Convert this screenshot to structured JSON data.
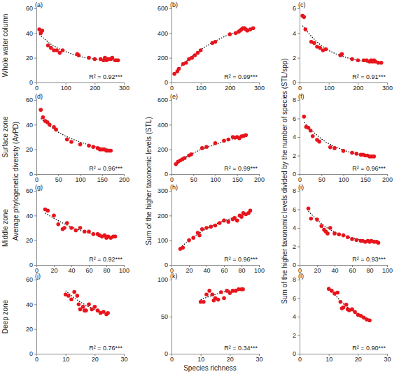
{
  "chart_data": [
    {
      "type": "scatter",
      "title": "(a)",
      "annotation": "R² = 0.92***",
      "xlim": [
        0,
        300
      ],
      "xticks": [
        0,
        100,
        200,
        300
      ],
      "ylim": [
        0,
        60
      ],
      "yticks": [
        0,
        20,
        40,
        60
      ],
      "series": [
        {
          "type": "scatter",
          "marker": "circle",
          "color": "#e8141c",
          "x": [
            10,
            15,
            20,
            40,
            50,
            60,
            70,
            80,
            90,
            140,
            145,
            180,
            200,
            220,
            230,
            235,
            240,
            245,
            250,
            255,
            260,
            270,
            275,
            280
          ],
          "values": [
            43,
            40,
            42,
            30,
            28,
            26,
            26,
            24,
            26,
            23,
            22,
            20,
            19,
            19,
            18,
            20,
            18,
            19,
            19,
            19,
            20,
            18,
            18,
            18
          ]
        },
        {
          "type": "line",
          "line_style": "dotted",
          "color": "#000000",
          "x": [
            10,
            50,
            100,
            150,
            200,
            250,
            280
          ],
          "values": [
            39,
            31,
            25,
            21,
            19,
            18,
            18
          ]
        }
      ]
    },
    {
      "type": "scatter",
      "title": "(b)",
      "annotation": "R² = 0.99***",
      "xlim": [
        0,
        300
      ],
      "xticks": [
        0,
        100,
        200,
        300
      ],
      "ylim": [
        0,
        600
      ],
      "yticks": [
        0,
        200,
        400,
        600
      ],
      "series": [
        {
          "type": "scatter",
          "marker": "circle",
          "color": "#e8141c",
          "x": [
            10,
            20,
            25,
            40,
            50,
            60,
            70,
            80,
            90,
            100,
            140,
            150,
            200,
            220,
            230,
            235,
            240,
            245,
            250,
            255,
            260,
            270,
            280
          ],
          "values": [
            70,
            90,
            110,
            150,
            160,
            190,
            200,
            220,
            240,
            260,
            320,
            330,
            390,
            400,
            410,
            420,
            430,
            440,
            440,
            430,
            420,
            430,
            440
          ]
        },
        {
          "type": "line",
          "line_style": "dotted",
          "color": "#000000",
          "x": [
            10,
            50,
            100,
            150,
            200,
            250,
            280
          ],
          "values": [
            75,
            170,
            265,
            335,
            390,
            425,
            440
          ]
        }
      ]
    },
    {
      "type": "scatter",
      "title": "(c)",
      "annotation": "R² = 0.91***",
      "xlim": [
        0,
        300
      ],
      "xticks": [
        0,
        100,
        200,
        300
      ],
      "ylim": [
        0,
        6
      ],
      "yticks": [
        0,
        2,
        4,
        6
      ],
      "series": [
        {
          "type": "scatter",
          "marker": "circle",
          "color": "#e8141c",
          "x": [
            10,
            15,
            20,
            40,
            50,
            60,
            70,
            80,
            90,
            140,
            145,
            180,
            200,
            220,
            230,
            240,
            245,
            250,
            255,
            260,
            270,
            280
          ],
          "values": [
            5.4,
            5.3,
            4.3,
            3.3,
            3.2,
            2.9,
            2.8,
            2.6,
            2.7,
            2.2,
            2.3,
            1.9,
            1.8,
            1.8,
            1.8,
            1.7,
            1.8,
            1.7,
            1.8,
            1.7,
            1.6,
            1.6
          ]
        },
        {
          "type": "line",
          "line_style": "dotted",
          "color": "#000000",
          "x": [
            10,
            50,
            100,
            150,
            200,
            250,
            280
          ],
          "values": [
            4.6,
            3.5,
            2.6,
            2.1,
            1.8,
            1.6,
            1.6
          ]
        }
      ]
    },
    {
      "type": "scatter",
      "title": "(d)",
      "annotation": "R² = 0.96***",
      "xlim": [
        0,
        200
      ],
      "xticks": [
        0,
        50,
        100,
        150,
        200
      ],
      "ylim": [
        0,
        60
      ],
      "yticks": [
        0,
        20,
        40,
        60
      ],
      "series": [
        {
          "type": "scatter",
          "marker": "circle",
          "color": "#e8141c",
          "x": [
            10,
            15,
            20,
            25,
            30,
            40,
            45,
            70,
            80,
            100,
            120,
            130,
            140,
            145,
            150,
            155,
            160,
            165,
            170
          ],
          "values": [
            52,
            46,
            43,
            42,
            40,
            38,
            36,
            28,
            26,
            24,
            23,
            22,
            21,
            20,
            20,
            20,
            19,
            19,
            19
          ]
        },
        {
          "type": "line",
          "line_style": "dotted",
          "color": "#000000",
          "x": [
            10,
            50,
            100,
            150,
            170
          ],
          "values": [
            45,
            34,
            26,
            21,
            20
          ]
        }
      ]
    },
    {
      "type": "scatter",
      "title": "(e)",
      "annotation": "R² = 0.99***",
      "xlim": [
        0,
        200
      ],
      "xticks": [
        0,
        50,
        100,
        150,
        200
      ],
      "ylim": [
        0,
        600
      ],
      "yticks": [
        0,
        200,
        400,
        600
      ],
      "series": [
        {
          "type": "scatter",
          "marker": "circle",
          "color": "#e8141c",
          "x": [
            10,
            15,
            20,
            25,
            30,
            40,
            45,
            70,
            80,
            100,
            120,
            130,
            140,
            145,
            150,
            155,
            160,
            165,
            170
          ],
          "values": [
            80,
            100,
            110,
            120,
            130,
            150,
            160,
            210,
            220,
            250,
            270,
            280,
            300,
            295,
            300,
            290,
            305,
            310,
            315
          ]
        },
        {
          "type": "line",
          "line_style": "dotted",
          "color": "#000000",
          "x": [
            10,
            50,
            100,
            150,
            170
          ],
          "values": [
            85,
            170,
            240,
            295,
            315
          ]
        }
      ]
    },
    {
      "type": "scatter",
      "title": "(f)",
      "annotation": "R² = 0.96***",
      "xlim": [
        0,
        200
      ],
      "xticks": [
        0,
        50,
        100,
        150,
        200
      ],
      "ylim": [
        0,
        8
      ],
      "yticks": [
        0,
        2,
        4,
        6,
        8
      ],
      "series": [
        {
          "type": "scatter",
          "marker": "circle",
          "color": "#e8141c",
          "x": [
            10,
            15,
            20,
            25,
            30,
            40,
            45,
            70,
            80,
            100,
            120,
            130,
            140,
            145,
            150,
            155,
            160,
            165,
            170
          ],
          "values": [
            6.2,
            5.1,
            5.0,
            4.7,
            4.1,
            3.7,
            3.5,
            2.9,
            2.8,
            2.5,
            2.3,
            2.2,
            2.1,
            2.1,
            2.0,
            2.0,
            1.9,
            1.9,
            1.9
          ]
        },
        {
          "type": "line",
          "line_style": "dotted",
          "color": "#000000",
          "x": [
            10,
            50,
            100,
            150,
            170
          ],
          "values": [
            5.6,
            3.8,
            2.6,
            2.0,
            1.9
          ]
        }
      ]
    },
    {
      "type": "scatter",
      "title": "(g)",
      "annotation": "R² = 0.92***",
      "xlim": [
        0,
        100
      ],
      "xticks": [
        0,
        20,
        40,
        60,
        80,
        100
      ],
      "ylim": [
        0,
        60
      ],
      "yticks": [
        0,
        20,
        40,
        60
      ],
      "series": [
        {
          "type": "scatter",
          "marker": "circle",
          "color": "#e8141c",
          "x": [
            10,
            13,
            20,
            25,
            30,
            32,
            35,
            40,
            45,
            50,
            55,
            60,
            65,
            70,
            72,
            75,
            78,
            80,
            82,
            85,
            88,
            90
          ],
          "values": [
            45,
            44,
            40,
            33,
            29,
            30,
            34,
            30,
            28,
            30,
            27,
            27,
            25,
            25,
            24,
            23,
            24,
            22,
            23,
            22,
            23,
            23
          ]
        },
        {
          "type": "line",
          "line_style": "dotted",
          "color": "#000000",
          "x": [
            10,
            30,
            50,
            70,
            90
          ],
          "values": [
            42,
            34,
            28,
            24,
            22
          ]
        }
      ]
    },
    {
      "type": "scatter",
      "title": "(h)",
      "annotation": "R² = 0.96***",
      "xlim": [
        0,
        100
      ],
      "xticks": [
        0,
        20,
        40,
        60,
        80,
        100
      ],
      "ylim": [
        0,
        300
      ],
      "yticks": [
        0,
        100,
        200,
        300
      ],
      "series": [
        {
          "type": "scatter",
          "marker": "circle",
          "color": "#e8141c",
          "x": [
            10,
            13,
            20,
            25,
            30,
            32,
            35,
            40,
            45,
            50,
            55,
            60,
            65,
            70,
            72,
            75,
            78,
            80,
            82,
            85,
            88,
            90
          ],
          "values": [
            65,
            70,
            100,
            110,
            130,
            120,
            145,
            150,
            155,
            160,
            170,
            180,
            175,
            185,
            190,
            180,
            200,
            195,
            210,
            205,
            210,
            220
          ]
        },
        {
          "type": "line",
          "line_style": "dotted",
          "color": "#000000",
          "x": [
            10,
            30,
            50,
            70,
            90
          ],
          "values": [
            70,
            125,
            165,
            190,
            210
          ]
        }
      ]
    },
    {
      "type": "scatter",
      "title": "(i)",
      "annotation": "R² = 0.93***",
      "xlim": [
        0,
        100
      ],
      "xticks": [
        0,
        20,
        40,
        60,
        80,
        100
      ],
      "ylim": [
        0,
        8
      ],
      "yticks": [
        0,
        2,
        4,
        6,
        8
      ],
      "series": [
        {
          "type": "scatter",
          "marker": "circle",
          "color": "#e8141c",
          "x": [
            10,
            13,
            20,
            25,
            28,
            30,
            32,
            35,
            40,
            45,
            50,
            55,
            60,
            65,
            70,
            72,
            75,
            78,
            80,
            82,
            85,
            88,
            90
          ],
          "values": [
            6.1,
            5.0,
            4.9,
            4.2,
            3.8,
            3.6,
            3.4,
            4.0,
            3.4,
            3.3,
            3.2,
            3.0,
            2.8,
            2.7,
            2.6,
            2.6,
            2.5,
            2.6,
            2.5,
            2.6,
            2.5,
            2.5,
            2.4
          ]
        },
        {
          "type": "line",
          "line_style": "dotted",
          "color": "#000000",
          "x": [
            10,
            30,
            50,
            70,
            90
          ],
          "values": [
            5.8,
            4.1,
            3.2,
            2.7,
            2.4
          ]
        }
      ]
    },
    {
      "type": "scatter",
      "title": "(j)",
      "annotation": "R² = 0.76***",
      "xlim": [
        0,
        30
      ],
      "xticks": [
        0,
        10,
        20,
        30
      ],
      "ylim": [
        0,
        60
      ],
      "yticks": [
        0,
        20,
        40,
        60
      ],
      "series": [
        {
          "type": "scatter",
          "marker": "circle",
          "color": "#e8141c",
          "x": [
            10,
            11,
            12,
            13,
            14,
            14.5,
            15,
            16,
            16.5,
            17,
            18,
            19,
            20,
            21,
            22,
            23,
            24,
            24.5
          ],
          "values": [
            48,
            47,
            44,
            50,
            47,
            40,
            36,
            38,
            35,
            35,
            40,
            36,
            38,
            35,
            33,
            34,
            32,
            33
          ]
        },
        {
          "type": "line",
          "line_style": "dotted",
          "color": "#000000",
          "x": [
            10,
            15,
            20,
            24
          ],
          "values": [
            51,
            42,
            36,
            33
          ]
        }
      ]
    },
    {
      "type": "scatter",
      "title": "(k)",
      "annotation": "R² = 0.34***",
      "xlim": [
        0,
        30
      ],
      "xticks": [
        0,
        10,
        20,
        30
      ],
      "ylim": [
        0,
        100
      ],
      "yticks": [
        0,
        50,
        100
      ],
      "series": [
        {
          "type": "scatter",
          "marker": "circle",
          "color": "#e8141c",
          "x": [
            10,
            11,
            12,
            13,
            14,
            14.5,
            15,
            16,
            17,
            18,
            19,
            20,
            21,
            22,
            23,
            24,
            24.5
          ],
          "values": [
            70,
            70,
            80,
            85,
            80,
            72,
            75,
            73,
            83,
            75,
            85,
            82,
            85,
            85,
            87,
            87,
            87
          ]
        },
        {
          "type": "line",
          "line_style": "dotted",
          "color": "#000000",
          "x": [
            10,
            15,
            20,
            24
          ],
          "values": [
            73,
            80,
            85,
            87
          ]
        }
      ]
    },
    {
      "type": "scatter",
      "title": "(l)",
      "annotation": "R² = 0.90***",
      "xlim": [
        0,
        30
      ],
      "xticks": [
        0,
        10,
        20,
        30
      ],
      "ylim": [
        0,
        8
      ],
      "yticks": [
        0,
        2,
        4,
        6,
        8
      ],
      "series": [
        {
          "type": "scatter",
          "marker": "circle",
          "color": "#e8141c",
          "x": [
            10,
            11,
            12,
            13,
            14,
            14.5,
            15,
            16,
            16.5,
            17,
            18,
            19,
            20,
            21,
            22,
            23,
            24
          ],
          "values": [
            7.0,
            6.8,
            6.5,
            6.6,
            5.6,
            4.9,
            5.0,
            5.3,
            4.8,
            4.7,
            4.8,
            4.5,
            4.2,
            4.1,
            3.9,
            3.7,
            3.6
          ]
        },
        {
          "type": "line",
          "line_style": "dotted",
          "color": "#000000",
          "x": [
            10,
            15,
            20,
            24
          ],
          "values": [
            7.2,
            5.4,
            4.3,
            3.7
          ]
        }
      ]
    }
  ],
  "row_labels": [
    "Whole water column",
    "Surface zone",
    "Middle zone",
    "Deep zone"
  ],
  "column_labels": [
    "Average phylogenetic diversity (AvPD)",
    "Sum of the higher taxonomic levels (STL)",
    "Sum of the higher taxonomic levels divided by the number of species (STL/spp)"
  ],
  "x_label": "Species richness"
}
